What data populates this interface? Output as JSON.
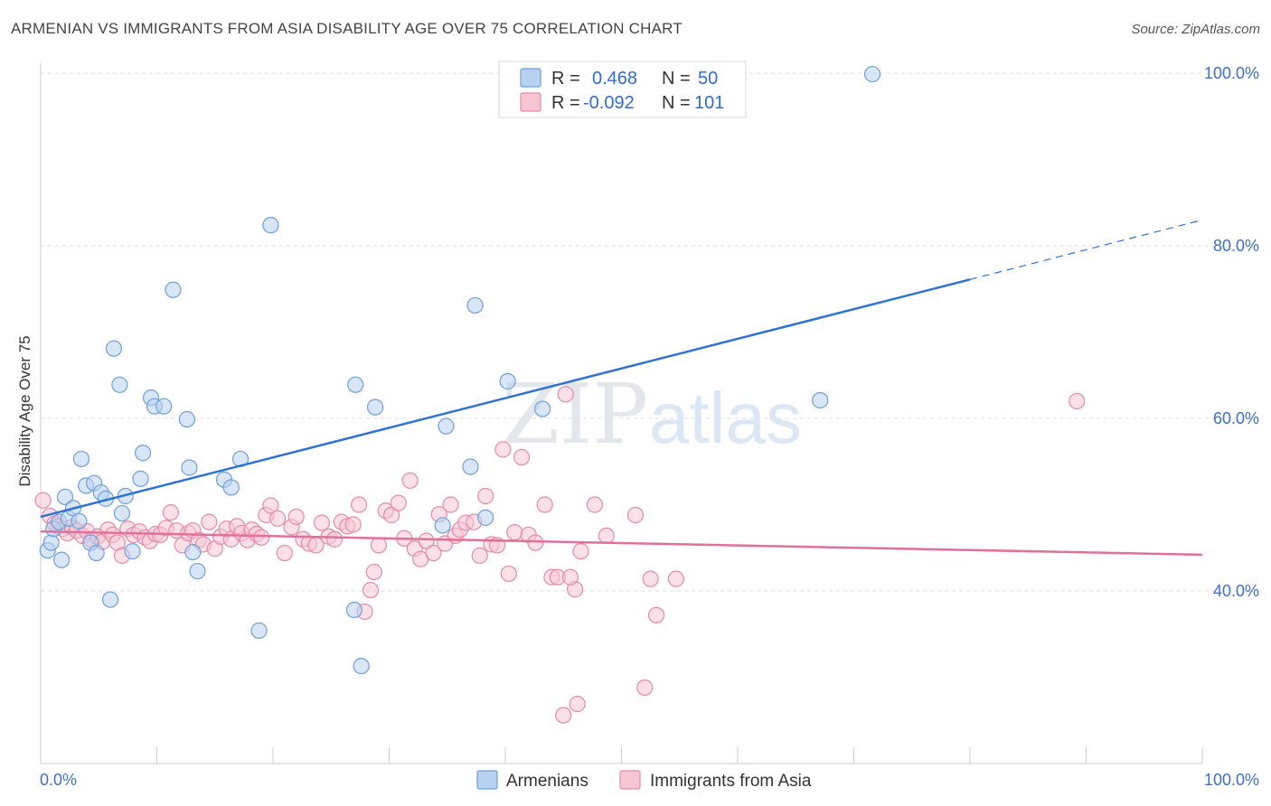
{
  "header": {
    "title": "ARMENIAN VS IMMIGRANTS FROM ASIA DISABILITY AGE OVER 75 CORRELATION CHART",
    "source": "Source: ZipAtlas.com"
  },
  "watermark": {
    "zip": "ZIP",
    "atlas": "atlas"
  },
  "legend": {
    "r_label": "R =",
    "n_label": "N =",
    "entries": [
      {
        "r": "0.468",
        "n": "50"
      },
      {
        "r": "-0.092",
        "n": "101"
      }
    ]
  },
  "bottom_legend": [
    "Armenians",
    "Immigrants from Asia"
  ],
  "colors": {
    "blue_fill": "#b8d1f0",
    "blue_stroke": "#6f9fd8",
    "blue_line": "#2f73d2",
    "pink_fill": "#f7c6d5",
    "pink_stroke": "#e48aa8",
    "pink_line": "#e0709a",
    "grid": "#dddddd",
    "tick_text": "#3d6fc4"
  },
  "chart_data": {
    "type": "scatter",
    "title": "ARMENIAN VS IMMIGRANTS FROM ASIA DISABILITY AGE OVER 75 CORRELATION CHART",
    "ylabel": "Disability Age Over 75",
    "xlabel": "",
    "xlim": [
      0,
      100
    ],
    "ylim": [
      20,
      102
    ],
    "x_tick_labels": [
      "0.0%",
      "100.0%"
    ],
    "y_ticks": [
      40,
      60,
      80,
      100
    ],
    "y_tick_labels": [
      "40.0%",
      "60.0%",
      "80.0%",
      "100.0%"
    ],
    "grid": true,
    "legend_placement": "top-center",
    "series": [
      {
        "name": "Armenians",
        "r": 0.468,
        "n": 50,
        "trend": {
          "x0": 0,
          "y0": 48.6,
          "x1": 80,
          "y1": 76.1,
          "dash_to_x": 100,
          "dash_to_y": 83.0
        },
        "points": [
          [
            0.6,
            44.7
          ],
          [
            0.9,
            45.6
          ],
          [
            1.1,
            47.2
          ],
          [
            1.6,
            48.0
          ],
          [
            1.8,
            43.6
          ],
          [
            2.1,
            50.9
          ],
          [
            2.4,
            48.4
          ],
          [
            2.8,
            49.6
          ],
          [
            3.3,
            48.1
          ],
          [
            3.5,
            55.3
          ],
          [
            3.9,
            52.2
          ],
          [
            4.3,
            45.6
          ],
          [
            4.6,
            52.5
          ],
          [
            4.8,
            44.4
          ],
          [
            5.2,
            51.4
          ],
          [
            5.6,
            50.7
          ],
          [
            6.0,
            39.0
          ],
          [
            6.3,
            68.1
          ],
          [
            6.8,
            63.9
          ],
          [
            7.0,
            49.0
          ],
          [
            7.3,
            51.0
          ],
          [
            7.9,
            44.6
          ],
          [
            8.6,
            53.0
          ],
          [
            8.8,
            56.0
          ],
          [
            9.5,
            62.4
          ],
          [
            9.8,
            61.4
          ],
          [
            10.6,
            61.4
          ],
          [
            11.4,
            74.9
          ],
          [
            12.6,
            59.9
          ],
          [
            12.8,
            54.3
          ],
          [
            13.1,
            44.5
          ],
          [
            13.5,
            42.3
          ],
          [
            15.8,
            52.9
          ],
          [
            16.4,
            52.0
          ],
          [
            17.2,
            55.3
          ],
          [
            18.8,
            35.4
          ],
          [
            19.8,
            82.4
          ],
          [
            27.0,
            37.8
          ],
          [
            27.1,
            63.9
          ],
          [
            27.6,
            31.3
          ],
          [
            28.8,
            61.3
          ],
          [
            34.6,
            47.6
          ],
          [
            34.9,
            59.1
          ],
          [
            37.0,
            54.4
          ],
          [
            37.4,
            73.1
          ],
          [
            38.3,
            48.5
          ],
          [
            40.2,
            64.3
          ],
          [
            43.2,
            61.1
          ],
          [
            67.1,
            62.1
          ],
          [
            71.6,
            99.9
          ]
        ]
      },
      {
        "name": "Immigrants from Asia",
        "r": -0.092,
        "n": 101,
        "trend": {
          "x0": 0,
          "y0": 46.9,
          "x1": 100,
          "y1": 44.2
        },
        "points": [
          [
            0.2,
            50.5
          ],
          [
            0.8,
            48.7
          ],
          [
            1.2,
            47.8
          ],
          [
            1.5,
            47.5
          ],
          [
            1.9,
            47.2
          ],
          [
            2.3,
            46.7
          ],
          [
            2.7,
            47.4
          ],
          [
            3.1,
            47.0
          ],
          [
            3.6,
            46.4
          ],
          [
            4.0,
            46.9
          ],
          [
            4.4,
            45.9
          ],
          [
            4.9,
            46.3
          ],
          [
            5.3,
            45.7
          ],
          [
            5.8,
            47.1
          ],
          [
            6.2,
            46.5
          ],
          [
            6.6,
            45.6
          ],
          [
            7.0,
            44.1
          ],
          [
            7.5,
            47.2
          ],
          [
            8.0,
            46.5
          ],
          [
            8.5,
            46.9
          ],
          [
            9.0,
            46.2
          ],
          [
            9.4,
            45.8
          ],
          [
            9.9,
            46.6
          ],
          [
            10.3,
            46.5
          ],
          [
            10.8,
            47.3
          ],
          [
            11.2,
            49.1
          ],
          [
            11.7,
            47.0
          ],
          [
            12.2,
            45.3
          ],
          [
            12.7,
            46.7
          ],
          [
            13.1,
            47.0
          ],
          [
            13.6,
            45.9
          ],
          [
            14.0,
            45.4
          ],
          [
            14.5,
            48.0
          ],
          [
            15.0,
            44.9
          ],
          [
            15.5,
            46.3
          ],
          [
            16.0,
            47.2
          ],
          [
            16.4,
            46.0
          ],
          [
            16.9,
            47.5
          ],
          [
            17.3,
            46.7
          ],
          [
            17.8,
            45.9
          ],
          [
            18.2,
            47.1
          ],
          [
            18.6,
            46.6
          ],
          [
            19.0,
            46.2
          ],
          [
            19.4,
            48.8
          ],
          [
            19.8,
            49.9
          ],
          [
            20.4,
            48.4
          ],
          [
            21.0,
            44.4
          ],
          [
            21.6,
            47.4
          ],
          [
            22.0,
            48.6
          ],
          [
            22.6,
            46.0
          ],
          [
            23.1,
            45.5
          ],
          [
            23.7,
            45.3
          ],
          [
            24.2,
            47.9
          ],
          [
            24.8,
            46.3
          ],
          [
            25.3,
            46.0
          ],
          [
            25.9,
            48.0
          ],
          [
            26.4,
            47.5
          ],
          [
            26.9,
            47.7
          ],
          [
            27.4,
            50.0
          ],
          [
            27.9,
            37.6
          ],
          [
            28.4,
            40.1
          ],
          [
            28.7,
            42.2
          ],
          [
            29.1,
            45.3
          ],
          [
            29.7,
            49.3
          ],
          [
            30.2,
            48.8
          ],
          [
            30.8,
            50.2
          ],
          [
            31.3,
            46.1
          ],
          [
            31.8,
            52.8
          ],
          [
            32.2,
            44.9
          ],
          [
            32.7,
            43.7
          ],
          [
            33.2,
            45.8
          ],
          [
            33.8,
            44.4
          ],
          [
            34.3,
            48.9
          ],
          [
            34.8,
            45.5
          ],
          [
            35.3,
            50.0
          ],
          [
            35.7,
            46.4
          ],
          [
            36.1,
            47.1
          ],
          [
            36.6,
            47.9
          ],
          [
            37.3,
            48.0
          ],
          [
            37.8,
            44.1
          ],
          [
            38.3,
            51.0
          ],
          [
            38.8,
            45.4
          ],
          [
            39.3,
            45.3
          ],
          [
            39.8,
            56.4
          ],
          [
            40.3,
            42.0
          ],
          [
            40.8,
            46.8
          ],
          [
            41.4,
            55.5
          ],
          [
            42.0,
            46.5
          ],
          [
            42.6,
            45.6
          ],
          [
            43.4,
            50.0
          ],
          [
            44.0,
            41.6
          ],
          [
            44.5,
            41.6
          ],
          [
            45.2,
            62.8
          ],
          [
            46.0,
            40.2
          ],
          [
            46.5,
            44.6
          ],
          [
            47.7,
            50.0
          ],
          [
            48.7,
            46.4
          ],
          [
            51.2,
            48.8
          ],
          [
            52.5,
            41.4
          ],
          [
            54.7,
            41.4
          ],
          [
            89.2,
            62.0
          ]
        ],
        "extra_points": [
          [
            45.0,
            25.6
          ],
          [
            46.2,
            26.9
          ],
          [
            52.0,
            28.8
          ],
          [
            53.0,
            37.2
          ],
          [
            45.6,
            41.6
          ]
        ]
      }
    ]
  }
}
